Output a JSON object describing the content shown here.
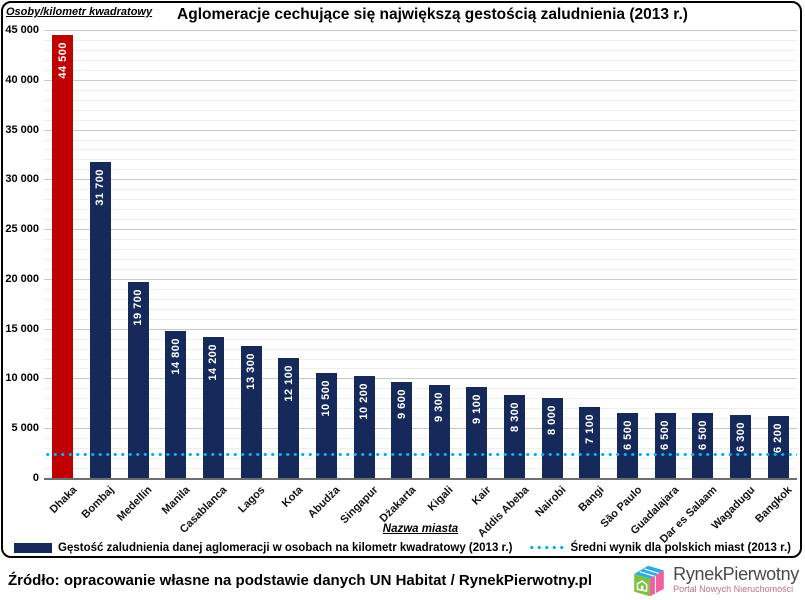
{
  "chart_data": {
    "type": "bar",
    "title": "Aglomeracje cechujące się największą gestością zaludnienia (2013 r.)",
    "y_axis_label": "Osoby/kilometr kwadratowy",
    "x_axis_label": "Nazwa miasta",
    "ylim": [
      0,
      45000
    ],
    "y_tick_step": 5000,
    "y_tick_labels": [
      "45 000",
      "40 000",
      "35 000",
      "30 000",
      "25 000",
      "20 000",
      "15 000",
      "10 000",
      "5 000",
      "0"
    ],
    "minor_grid_step": 1000,
    "grid": "major+minor",
    "categories": [
      "Dhaka",
      "Bombaj",
      "Medellín",
      "Manila",
      "Casablanca",
      "Lagos",
      "Kota",
      "Abudża",
      "Singapur",
      "Dżakarta",
      "Kigali",
      "Kair",
      "Addis Abeba",
      "Nairobi",
      "Bangi",
      "São Paulo",
      "Guadalajara",
      "Dar es Salaam",
      "Wagadugu",
      "Bangkok"
    ],
    "values": [
      44500,
      31700,
      19700,
      14800,
      14200,
      13300,
      12100,
      10500,
      10200,
      9600,
      9300,
      9100,
      8300,
      8000,
      7100,
      6500,
      6500,
      6500,
      6300,
      6200
    ],
    "value_labels": [
      "44 500",
      "31 700",
      "19 700",
      "14 800",
      "14 200",
      "13 300",
      "12 100",
      "10 500",
      "10 200",
      "9 600",
      "9 300",
      "9 100",
      "8 300",
      "8 000",
      "7 100",
      "6 500",
      "6 500",
      "6 500",
      "6 300",
      "6 200"
    ],
    "highlight_index": 0,
    "bar_colors": {
      "highlight": "#C00000",
      "default": "#16295B"
    },
    "average_line": {
      "value": 2400,
      "color": "#00B0F0",
      "style": "dotted"
    },
    "legend_position": "bottom"
  },
  "legend": {
    "series_label": "Gęstość zaludnienia danej aglomeracji w osobach na kilometr kwadratowy (2013 r.)",
    "average_label": "Średni wynik dla polskich miast (2013 r.)"
  },
  "footer": {
    "source": "Źródło: opracowanie własne na podstawie danych UN Habitat / RynekPierwotny.pl",
    "logo_name": "RynekPierwotny",
    "logo_tagline": "Portal Nowych Nieruchomości"
  },
  "colors": {
    "bar_default": "#16295B",
    "bar_highlight": "#C00000",
    "average_dots": "#00B0F0",
    "grid_major": "#C7C7C7",
    "grid_minor": "#EFEFEF",
    "frame_border": "#000000",
    "logo_green": "#7FC241",
    "logo_blue": "#2BACE2",
    "logo_pink": "#F0609E"
  },
  "icons": {
    "logo_icon": "house-cube-icon"
  }
}
